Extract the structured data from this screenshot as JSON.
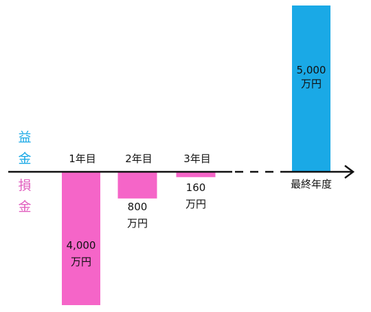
{
  "chart_data": {
    "type": "bar",
    "categories": [
      "1年目",
      "2年目",
      "3年目",
      "最終年度"
    ],
    "values": [
      -4000,
      -800,
      -160,
      5000
    ],
    "value_labels": [
      [
        "4,000",
        "万円"
      ],
      [
        "800",
        "万円"
      ],
      [
        "160",
        "万円"
      ],
      [
        "5,000",
        "万円"
      ]
    ],
    "unit": "万円",
    "ylim": [
      -4000,
      5000
    ],
    "axis_labels": {
      "positive": [
        "益",
        "金"
      ],
      "negative": [
        "損",
        "金"
      ]
    },
    "colors": {
      "positive": "#1aa9e6",
      "negative": "#f565c8",
      "positive_label": "#1aa9e6",
      "negative_label": "#e15fbf",
      "axis": "#111111",
      "text": "#111111"
    },
    "grid": false,
    "legend": "none"
  }
}
